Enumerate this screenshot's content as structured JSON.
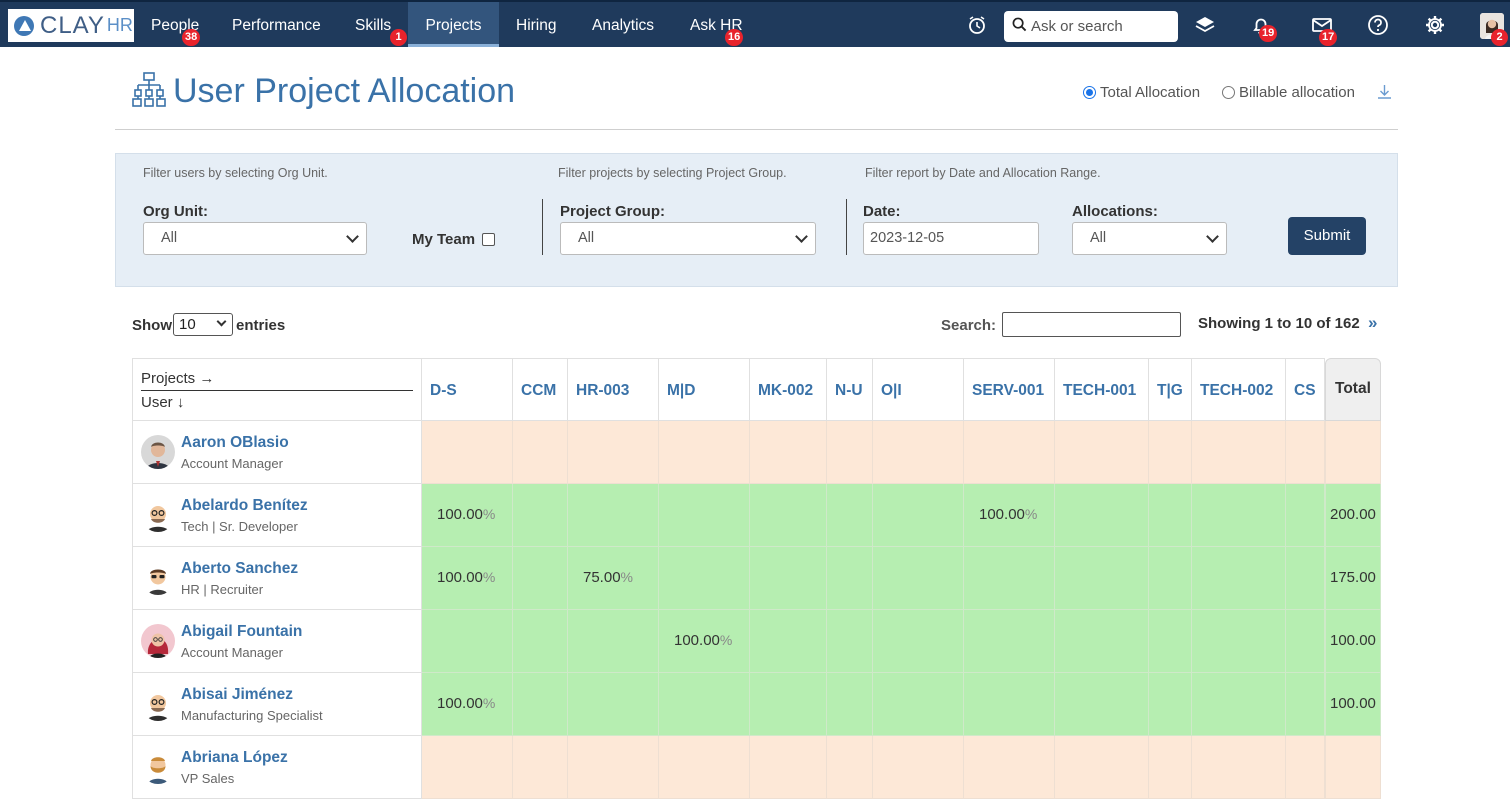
{
  "nav": {
    "logo": {
      "text": "CLAY",
      "suffix": "HR"
    },
    "items": [
      {
        "label": "People",
        "badge": "38"
      },
      {
        "label": "Performance",
        "badge": ""
      },
      {
        "label": "Skills",
        "badge": "1"
      },
      {
        "label": "Projects",
        "badge": ""
      },
      {
        "label": "Hiring",
        "badge": ""
      },
      {
        "label": "Analytics",
        "badge": ""
      },
      {
        "label": "Ask HR",
        "badge": "16"
      }
    ],
    "search_placeholder": "Ask or search",
    "notifications_badge": "19",
    "messages_badge": "17",
    "profile_badge": "2"
  },
  "page": {
    "title": "User Project Allocation",
    "alloc_options": [
      {
        "label": "Total Allocation",
        "checked": true
      },
      {
        "label": "Billable allocation",
        "checked": false
      }
    ]
  },
  "filters": {
    "hint_org": "Filter users by selecting Org Unit.",
    "hint_project": "Filter projects by selecting Project Group.",
    "hint_date": "Filter report by Date and Allocation Range.",
    "org_unit_label": "Org Unit:",
    "org_unit_value": "All",
    "my_team_label": "My Team",
    "project_group_label": "Project Group:",
    "project_group_value": "All",
    "date_label": "Date:",
    "date_value": "2023-12-05",
    "allocations_label": "Allocations:",
    "allocations_value": "All",
    "submit_label": "Submit"
  },
  "table_controls": {
    "show_label": "Show",
    "entries_value": "10",
    "entries_label": "entries",
    "search_label": "Search:",
    "showing_text": "Showing 1 to 10 of 162",
    "next_glyph": "»"
  },
  "table": {
    "corner_top": "Projects →",
    "corner_bottom": "User ↓",
    "projects": [
      "D-S",
      "CCM",
      "HR-003",
      "M|D",
      "MK-002",
      "N-U",
      "O|I",
      "SERV-001",
      "TECH-001",
      "T|G",
      "TECH-002",
      "CS"
    ],
    "total_label": "Total",
    "pct_sign": "%",
    "colors": {
      "empty_row": "#fde8d7",
      "alloc_row": "#b6eeb1"
    },
    "rows": [
      {
        "name": "Aaron OBlasio",
        "role": "Account Manager",
        "avatar": "photo-man-suit",
        "allocations": [
          null,
          null,
          null,
          null,
          null,
          null,
          null,
          null,
          null,
          null,
          null,
          null
        ],
        "total": ""
      },
      {
        "name": "Abelardo Benítez",
        "role": "Tech | Sr. Developer",
        "avatar": "cartoon-bald-glasses",
        "allocations": [
          "100.00",
          null,
          null,
          null,
          null,
          null,
          null,
          "100.00",
          null,
          null,
          null,
          null
        ],
        "total": "200.00"
      },
      {
        "name": "Aberto Sanchez",
        "role": "HR | Recruiter",
        "avatar": "cartoon-sunglasses",
        "allocations": [
          "100.00",
          null,
          "75.00",
          null,
          null,
          null,
          null,
          null,
          null,
          null,
          null,
          null
        ],
        "total": "175.00"
      },
      {
        "name": "Abigail Fountain",
        "role": "Account Manager",
        "avatar": "photo-woman-red-hair",
        "allocations": [
          null,
          null,
          null,
          "100.00",
          null,
          null,
          null,
          null,
          null,
          null,
          null,
          null
        ],
        "total": "100.00"
      },
      {
        "name": "Abisai Jiménez",
        "role": "Manufacturing Specialist",
        "avatar": "cartoon-bald-glasses",
        "allocations": [
          "100.00",
          null,
          null,
          null,
          null,
          null,
          null,
          null,
          null,
          null,
          null,
          null
        ],
        "total": "100.00"
      },
      {
        "name": "Abriana López",
        "role": "VP Sales",
        "avatar": "cartoon-bearded-man",
        "allocations": [
          null,
          null,
          null,
          null,
          null,
          null,
          null,
          null,
          null,
          null,
          null,
          null
        ],
        "total": ""
      }
    ]
  }
}
